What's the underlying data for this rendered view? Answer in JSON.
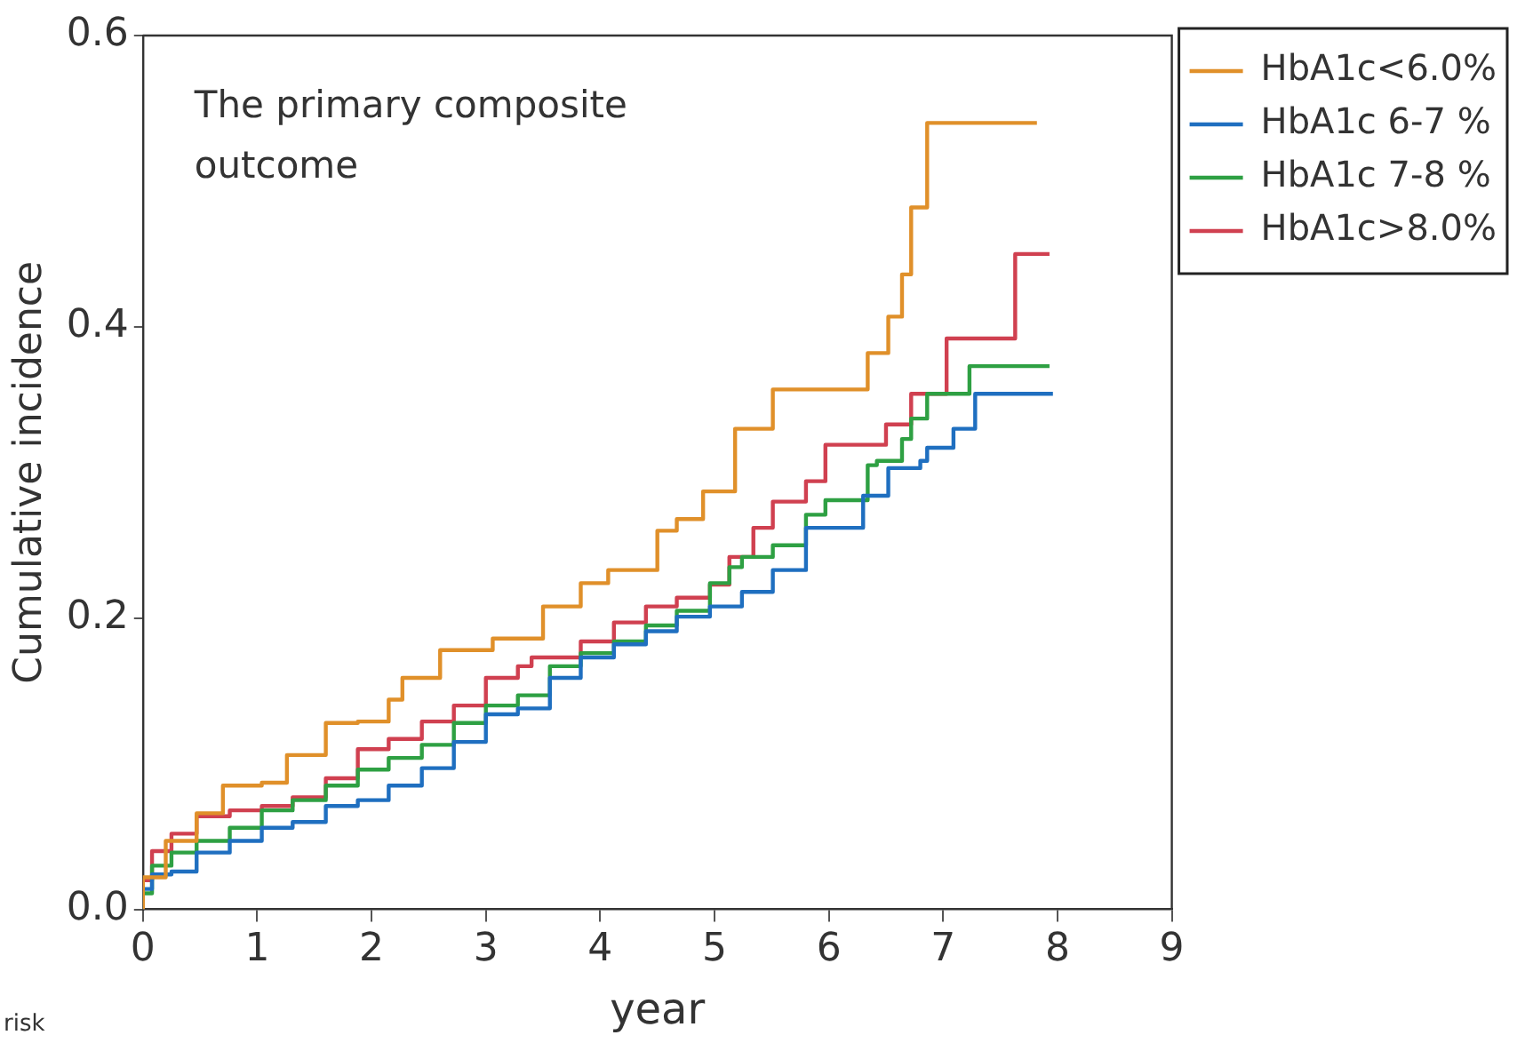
{
  "chart_data": {
    "type": "step",
    "xlabel": "year",
    "ylabel": "Cumulative incidence",
    "annotations": [
      "The primary composite outcome",
      "risk"
    ],
    "xlim": [
      0,
      9
    ],
    "xticks": [
      0,
      1,
      2,
      3,
      4,
      5,
      6,
      7,
      8,
      9
    ],
    "ylim": [
      0,
      0.6
    ],
    "yticks": [
      {
        "value": 0,
        "label": "0.0"
      },
      {
        "value": 0.2,
        "label": "0.2"
      },
      {
        "value": 0.4,
        "label": "0.4"
      },
      {
        "value": 0.6,
        "label": "0.6"
      }
    ],
    "grid": false,
    "legend": "top right",
    "marker": "none",
    "line_style": "solid",
    "series": [
      {
        "name": "HbA1c<6.0%",
        "color": "#e0902a",
        "x": [
          0,
          0.2,
          0.47,
          0.7,
          1.04,
          1.26,
          1.6,
          1.88,
          2.15,
          2.27,
          2.6,
          3.06,
          3.5,
          3.83,
          4.07,
          4.5,
          4.67,
          4.9,
          5.18,
          5.51,
          6.34,
          6.52,
          6.64,
          6.72,
          6.86,
          7.18,
          7.82
        ],
        "values": [
          0,
          0.022,
          0.047,
          0.066,
          0.085,
          0.087,
          0.106,
          0.128,
          0.129,
          0.144,
          0.159,
          0.178,
          0.186,
          0.208,
          0.224,
          0.233,
          0.26,
          0.268,
          0.287,
          0.33,
          0.357,
          0.382,
          0.407,
          0.436,
          0.482,
          0.54,
          0.54
        ]
      },
      {
        "name": "HbA1c 6-7 %",
        "color": "#1f6fc0",
        "x": [
          0,
          0.08,
          0.25,
          0.47,
          0.76,
          1.04,
          1.31,
          1.6,
          1.88,
          2.15,
          2.44,
          2.72,
          3.0,
          3.28,
          3.56,
          3.83,
          4.12,
          4.4,
          4.67,
          4.96,
          5.24,
          5.51,
          5.8,
          6.3,
          6.52,
          6.8,
          6.86,
          7.09,
          7.28,
          7.78,
          7.96
        ],
        "values": [
          0,
          0.014,
          0.024,
          0.026,
          0.039,
          0.047,
          0.056,
          0.06,
          0.071,
          0.075,
          0.085,
          0.097,
          0.115,
          0.134,
          0.138,
          0.159,
          0.173,
          0.182,
          0.191,
          0.201,
          0.208,
          0.218,
          0.233,
          0.262,
          0.284,
          0.303,
          0.308,
          0.317,
          0.33,
          0.354,
          0.354
        ]
      },
      {
        "name": "HbA1c 7-8 %",
        "color": "#2ea043",
        "x": [
          0,
          0.08,
          0.25,
          0.47,
          0.76,
          1.04,
          1.31,
          1.6,
          1.88,
          2.15,
          2.44,
          2.72,
          3.0,
          3.28,
          3.56,
          3.83,
          4.12,
          4.4,
          4.67,
          4.96,
          5.13,
          5.24,
          5.51,
          5.8,
          5.97,
          6.34,
          6.42,
          6.64,
          6.72,
          6.86,
          7.0,
          7.23,
          7.26,
          7.93
        ],
        "values": [
          0,
          0.011,
          0.03,
          0.039,
          0.047,
          0.056,
          0.068,
          0.075,
          0.085,
          0.096,
          0.104,
          0.113,
          0.128,
          0.14,
          0.147,
          0.167,
          0.176,
          0.184,
          0.195,
          0.205,
          0.224,
          0.235,
          0.242,
          0.25,
          0.271,
          0.281,
          0.305,
          0.308,
          0.323,
          0.337,
          0.354,
          0.354,
          0.373,
          0.373
        ]
      },
      {
        "name": "HbA1c>8.0%",
        "color": "#d04050",
        "x": [
          0,
          0.08,
          0.25,
          0.47,
          0.76,
          1.04,
          1.31,
          1.6,
          1.88,
          2.15,
          2.44,
          2.72,
          3.0,
          3.28,
          3.4,
          3.83,
          4.12,
          4.4,
          4.67,
          4.96,
          5.13,
          5.34,
          5.51,
          5.8,
          5.97,
          6.5,
          6.72,
          7.03,
          7.63,
          7.78,
          7.93
        ],
        "values": [
          0,
          0.02,
          0.04,
          0.052,
          0.064,
          0.068,
          0.071,
          0.077,
          0.09,
          0.11,
          0.117,
          0.129,
          0.14,
          0.159,
          0.167,
          0.173,
          0.184,
          0.197,
          0.208,
          0.214,
          0.223,
          0.242,
          0.262,
          0.28,
          0.294,
          0.319,
          0.333,
          0.354,
          0.392,
          0.45,
          0.45
        ]
      }
    ]
  }
}
